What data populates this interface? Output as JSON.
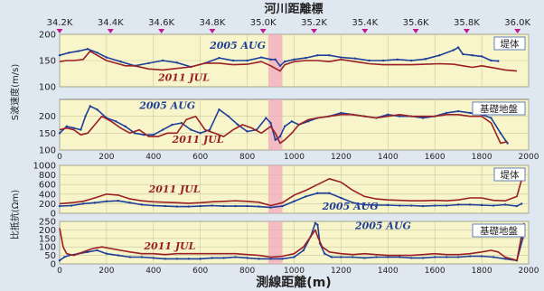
{
  "header": {
    "title": "河川距離標",
    "markers": [
      "34.2K",
      "34.4K",
      "34.6K",
      "34.8K",
      "35.0K",
      "35.2K",
      "35.4K",
      "35.6K",
      "35.8K",
      "36.0K"
    ]
  },
  "footer": {
    "xlabel": "測線距離(m)"
  },
  "colors": {
    "series_2005": "#1f3f9a",
    "series_2011": "#9b1f24",
    "plot_bg": "#f7f5c9",
    "band": "#f2a7bf",
    "marker": "#c0188f"
  },
  "chart_data": [
    {
      "type": "line",
      "panel_label": "堤体",
      "ylabel": "S波速度(m/s)",
      "xlim": [
        0,
        2000
      ],
      "ylim": [
        100,
        200
      ],
      "yticks": [
        100,
        150,
        200
      ],
      "xticks": [],
      "band": [
        890,
        950
      ],
      "annotations": [
        {
          "text": "2005 AUG",
          "x": 640,
          "y": 172
        },
        {
          "text": "2011 JUL",
          "x": 420,
          "y": 111
        }
      ],
      "series": [
        {
          "name": "2005 AUG",
          "x": [
            0,
            40,
            80,
            120,
            160,
            200,
            260,
            320,
            380,
            440,
            500,
            560,
            620,
            680,
            740,
            800,
            860,
            900,
            920,
            940,
            960,
            1000,
            1050,
            1100,
            1150,
            1200,
            1260,
            1320,
            1380,
            1440,
            1500,
            1560,
            1620,
            1680,
            1700,
            1720,
            1760,
            1800,
            1840,
            1870
          ],
          "y": [
            160,
            165,
            168,
            172,
            165,
            156,
            148,
            140,
            145,
            150,
            146,
            138,
            145,
            155,
            150,
            150,
            156,
            152,
            152,
            140,
            148,
            152,
            155,
            160,
            160,
            156,
            154,
            150,
            150,
            152,
            150,
            153,
            160,
            170,
            175,
            162,
            160,
            158,
            150,
            149
          ]
        },
        {
          "name": "2011 JUL",
          "x": [
            0,
            30,
            60,
            100,
            130,
            160,
            200,
            240,
            280,
            320,
            380,
            440,
            500,
            560,
            620,
            680,
            740,
            800,
            860,
            900,
            920,
            940,
            960,
            1000,
            1050,
            1100,
            1150,
            1200,
            1260,
            1320,
            1380,
            1440,
            1500,
            1560,
            1620,
            1680,
            1720,
            1760,
            1800,
            1850,
            1900,
            1950
          ],
          "y": [
            148,
            150,
            150,
            152,
            168,
            160,
            150,
            145,
            140,
            140,
            134,
            132,
            135,
            138,
            145,
            145,
            142,
            143,
            148,
            140,
            135,
            130,
            142,
            148,
            150,
            150,
            148,
            152,
            148,
            144,
            142,
            142,
            142,
            143,
            144,
            143,
            140,
            137,
            140,
            136,
            132,
            130
          ]
        }
      ]
    },
    {
      "type": "line",
      "panel_label": "基礎地盤",
      "ylabel": "S波速度(m/s)",
      "xlim": [
        0,
        2000
      ],
      "ylim": [
        100,
        250
      ],
      "yticks": [
        100,
        150,
        200
      ],
      "xticks": [
        0,
        200,
        400,
        600,
        800,
        1000,
        1200,
        1400,
        1600,
        1800,
        2000
      ],
      "band": [
        890,
        950
      ],
      "annotations": [
        {
          "text": "2005 AUG",
          "x": 340,
          "y": 222
        },
        {
          "text": "2011 JUL",
          "x": 480,
          "y": 122
        }
      ],
      "series": [
        {
          "name": "2005 AUG",
          "x": [
            0,
            30,
            60,
            90,
            110,
            130,
            160,
            200,
            240,
            280,
            320,
            360,
            400,
            440,
            480,
            520,
            560,
            600,
            640,
            680,
            720,
            760,
            800,
            840,
            880,
            900,
            920,
            940,
            960,
            990,
            1020,
            1060,
            1100,
            1150,
            1200,
            1250,
            1300,
            1350,
            1400,
            1450,
            1500,
            1550,
            1600,
            1650,
            1700,
            1750,
            1800,
            1840,
            1880,
            1910
          ],
          "y": [
            150,
            170,
            165,
            160,
            200,
            230,
            220,
            195,
            185,
            170,
            150,
            145,
            145,
            160,
            175,
            180,
            160,
            150,
            160,
            220,
            200,
            175,
            155,
            160,
            195,
            180,
            130,
            140,
            170,
            185,
            175,
            185,
            195,
            200,
            210,
            205,
            200,
            195,
            205,
            200,
            200,
            195,
            200,
            210,
            215,
            210,
            205,
            195,
            150,
            120
          ]
        },
        {
          "name": "2011 JUL",
          "x": [
            0,
            30,
            60,
            90,
            120,
            150,
            180,
            220,
            260,
            300,
            340,
            380,
            420,
            460,
            500,
            540,
            580,
            620,
            660,
            700,
            740,
            780,
            820,
            860,
            900,
            920,
            940,
            960,
            990,
            1020,
            1060,
            1100,
            1150,
            1200,
            1250,
            1300,
            1350,
            1400,
            1450,
            1500,
            1550,
            1600,
            1650,
            1700,
            1750,
            1800,
            1840,
            1860,
            1880,
            1910
          ],
          "y": [
            160,
            165,
            160,
            145,
            150,
            175,
            200,
            185,
            165,
            150,
            160,
            140,
            140,
            150,
            150,
            190,
            200,
            160,
            150,
            140,
            160,
            175,
            165,
            150,
            170,
            150,
            120,
            130,
            150,
            175,
            190,
            195,
            200,
            205,
            205,
            200,
            195,
            200,
            205,
            200,
            200,
            200,
            205,
            205,
            200,
            200,
            180,
            150,
            120,
            125
          ]
        }
      ]
    },
    {
      "type": "line",
      "panel_label": "堤体",
      "ylabel": "比抵抗(Ωm)",
      "xlim": [
        0,
        2000
      ],
      "ylim": [
        0,
        1000
      ],
      "yticks": [
        0,
        200,
        400,
        600,
        800,
        1000
      ],
      "xticks": [],
      "band": [
        890,
        950
      ],
      "annotations": [
        {
          "text": "2011 JUL",
          "x": 380,
          "y": 430
        },
        {
          "text": "2005 AUG",
          "x": 1120,
          "y": 80
        }
      ],
      "series": [
        {
          "name": "2005 AUG",
          "x": [
            0,
            50,
            100,
            150,
            200,
            250,
            300,
            350,
            400,
            450,
            500,
            550,
            600,
            650,
            700,
            750,
            800,
            850,
            900,
            950,
            1000,
            1050,
            1100,
            1150,
            1200,
            1250,
            1300,
            1350,
            1400,
            1450,
            1500,
            1550,
            1600,
            1650,
            1700,
            1750,
            1800,
            1850,
            1900,
            1950,
            1970
          ],
          "y": [
            150,
            160,
            200,
            220,
            250,
            260,
            220,
            180,
            160,
            150,
            140,
            140,
            150,
            160,
            150,
            150,
            150,
            140,
            120,
            150,
            250,
            350,
            420,
            420,
            320,
            220,
            180,
            170,
            170,
            160,
            160,
            150,
            160,
            160,
            180,
            180,
            170,
            160,
            180,
            150,
            200
          ]
        },
        {
          "name": "2011 JUL",
          "x": [
            0,
            50,
            100,
            150,
            200,
            250,
            300,
            350,
            400,
            450,
            500,
            550,
            600,
            650,
            700,
            750,
            800,
            850,
            900,
            950,
            1000,
            1050,
            1100,
            1150,
            1200,
            1250,
            1300,
            1350,
            1400,
            1450,
            1500,
            1550,
            1600,
            1650,
            1700,
            1750,
            1800,
            1850,
            1900,
            1950,
            1970
          ],
          "y": [
            200,
            220,
            250,
            320,
            400,
            380,
            300,
            260,
            240,
            230,
            220,
            210,
            220,
            240,
            250,
            260,
            250,
            230,
            160,
            220,
            380,
            480,
            600,
            720,
            650,
            480,
            350,
            300,
            280,
            270,
            260,
            260,
            270,
            260,
            280,
            320,
            320,
            270,
            260,
            350,
            700
          ]
        }
      ]
    },
    {
      "type": "line",
      "panel_label": "基礎地盤",
      "ylabel": "比抵抗(Ωm)",
      "xlim": [
        0,
        2000
      ],
      "ylim": [
        0,
        250
      ],
      "yticks": [
        0,
        50,
        100,
        150,
        200,
        250
      ],
      "xticks": [
        0,
        200,
        400,
        600,
        800,
        1000,
        1200,
        1400,
        1600,
        1800,
        2000
      ],
      "band": [
        890,
        950
      ],
      "annotations": [
        {
          "text": "2005 AUG",
          "x": 1260,
          "y": 205
        },
        {
          "text": "2011 JUL",
          "x": 360,
          "y": 85
        }
      ],
      "series": [
        {
          "name": "2005 AUG",
          "x": [
            0,
            20,
            40,
            80,
            120,
            160,
            200,
            250,
            300,
            350,
            400,
            450,
            500,
            550,
            600,
            650,
            700,
            750,
            800,
            850,
            900,
            950,
            1000,
            1040,
            1070,
            1090,
            1100,
            1110,
            1130,
            1160,
            1200,
            1250,
            1300,
            1350,
            1400,
            1450,
            1500,
            1550,
            1600,
            1650,
            1700,
            1750,
            1800,
            1850,
            1900,
            1950,
            1975
          ],
          "y": [
            20,
            40,
            50,
            60,
            70,
            80,
            60,
            50,
            40,
            40,
            35,
            30,
            30,
            30,
            30,
            35,
            35,
            40,
            35,
            30,
            30,
            30,
            40,
            80,
            160,
            240,
            230,
            120,
            60,
            40,
            40,
            40,
            35,
            40,
            40,
            40,
            35,
            35,
            40,
            40,
            40,
            45,
            45,
            40,
            30,
            20,
            150
          ]
        },
        {
          "name": "2011 JUL",
          "x": [
            0,
            15,
            30,
            60,
            100,
            140,
            180,
            220,
            260,
            300,
            350,
            400,
            450,
            500,
            550,
            600,
            650,
            700,
            750,
            800,
            850,
            900,
            950,
            1000,
            1040,
            1070,
            1090,
            1100,
            1120,
            1150,
            1200,
            1250,
            1300,
            1350,
            1400,
            1450,
            1500,
            1550,
            1600,
            1650,
            1700,
            1750,
            1800,
            1840,
            1870,
            1900,
            1950,
            1980
          ],
          "y": [
            210,
            100,
            60,
            50,
            70,
            90,
            100,
            90,
            80,
            70,
            60,
            60,
            55,
            60,
            60,
            60,
            60,
            60,
            60,
            55,
            50,
            40,
            45,
            60,
            100,
            160,
            200,
            160,
            100,
            70,
            60,
            55,
            60,
            55,
            50,
            50,
            50,
            55,
            60,
            55,
            55,
            60,
            70,
            80,
            70,
            40,
            20,
            240
          ]
        }
      ]
    }
  ]
}
